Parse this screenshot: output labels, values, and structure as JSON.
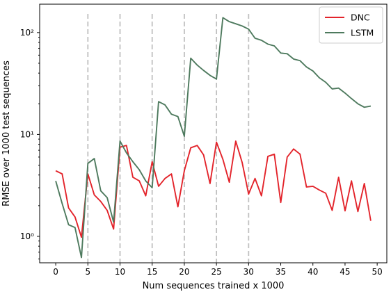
{
  "chart_data": {
    "type": "line",
    "xlabel": "Num sequences trained x 1000",
    "ylabel": "RMSE over 1000 test sequences",
    "yscale": "log",
    "xlim": [
      -2.5,
      51.5
    ],
    "ylim": [
      0.55,
      190
    ],
    "xticks": [
      0,
      5,
      10,
      15,
      20,
      25,
      30,
      35,
      40,
      45,
      50
    ],
    "xtick_labels": [
      "0",
      "5",
      "10",
      "15",
      "20",
      "25",
      "30",
      "35",
      "40",
      "45",
      "50"
    ],
    "yticks": [
      1,
      10,
      100
    ],
    "ytick_labels": [
      "10⁰",
      "10¹",
      "10²"
    ],
    "vlines": [
      5,
      10,
      15,
      20,
      25,
      30
    ],
    "vline_color": "#c0c0c0",
    "legend_position": "upper right",
    "x": [
      0,
      1,
      2,
      3,
      4,
      5,
      6,
      7,
      8,
      9,
      10,
      11,
      12,
      13,
      14,
      15,
      16,
      17,
      18,
      19,
      20,
      21,
      22,
      23,
      24,
      25,
      26,
      27,
      28,
      29,
      30,
      31,
      32,
      33,
      34,
      35,
      36,
      37,
      38,
      39,
      40,
      41,
      42,
      43,
      44,
      45,
      46,
      47,
      48,
      49
    ],
    "series": [
      {
        "name": "DNC",
        "color": "#e3242b",
        "values": [
          4.4,
          4.1,
          1.9,
          1.55,
          0.98,
          4.1,
          2.55,
          2.2,
          1.8,
          1.18,
          7.5,
          7.8,
          3.8,
          3.5,
          2.5,
          5.4,
          3.1,
          3.7,
          4.1,
          1.95,
          4.4,
          7.4,
          7.8,
          6.3,
          3.3,
          8.4,
          5.7,
          3.4,
          8.6,
          5.3,
          2.6,
          3.7,
          2.5,
          6.1,
          6.4,
          2.15,
          6.0,
          7.2,
          6.4,
          3.05,
          3.1,
          2.85,
          2.65,
          1.8,
          3.8,
          1.78,
          3.5,
          1.75,
          3.3,
          1.42
        ]
      },
      {
        "name": "LSTM",
        "color": "#4e7a5e",
        "values": [
          3.5,
          2.1,
          1.3,
          1.22,
          0.62,
          5.2,
          5.8,
          2.8,
          2.4,
          1.38,
          8.6,
          6.6,
          5.4,
          4.5,
          3.5,
          3.0,
          21.0,
          19.5,
          15.8,
          15.0,
          9.6,
          56.0,
          48.0,
          42.5,
          38.0,
          35.0,
          140.0,
          128.0,
          122.0,
          116.0,
          108.0,
          88.0,
          84.0,
          77.0,
          74.0,
          63.0,
          62.0,
          55.0,
          53.0,
          46.0,
          42.0,
          36.0,
          32.5,
          28.0,
          28.5,
          25.5,
          22.5,
          20.0,
          18.5,
          19.0
        ]
      }
    ]
  }
}
